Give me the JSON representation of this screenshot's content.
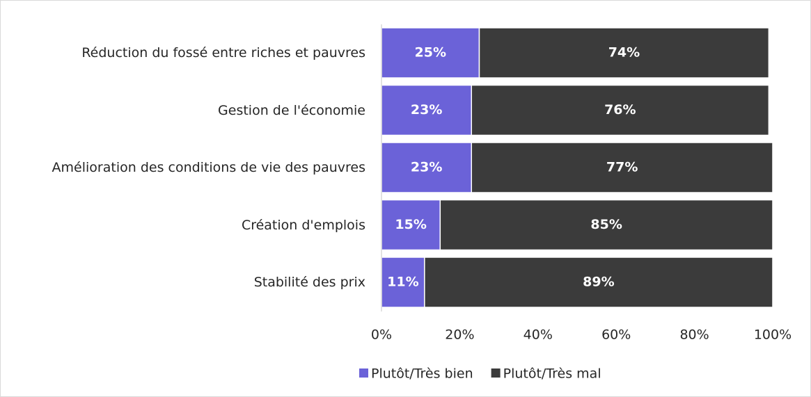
{
  "chart_data": {
    "type": "stacked_bar_horizontal",
    "categories": [
      "Réduction du fossé entre riches et pauvres",
      "Gestion de l'économie",
      "Amélioration des conditions de vie des pauvres",
      "Création d'emplois",
      "Stabilité des prix"
    ],
    "series": [
      {
        "name": "Plutôt/Très bien",
        "color": "#6b62d8",
        "values": [
          25,
          23,
          23,
          15,
          11
        ],
        "value_labels": [
          "25%",
          "23%",
          "23%",
          "15%",
          "11%"
        ]
      },
      {
        "name": "Plutôt/Très mal",
        "color": "#3b3b3b",
        "values": [
          74,
          76,
          77,
          85,
          89
        ],
        "value_labels": [
          "74%",
          "76%",
          "77%",
          "85%",
          "89%"
        ]
      }
    ],
    "xlim": [
      0,
      100
    ],
    "xticks": [
      {
        "value": 0,
        "label": "0%"
      },
      {
        "value": 20,
        "label": "20%"
      },
      {
        "value": 40,
        "label": "40%"
      },
      {
        "value": 60,
        "label": "60%"
      },
      {
        "value": 80,
        "label": "80%"
      },
      {
        "value": 100,
        "label": "100%"
      }
    ],
    "legend": "bottom"
  }
}
